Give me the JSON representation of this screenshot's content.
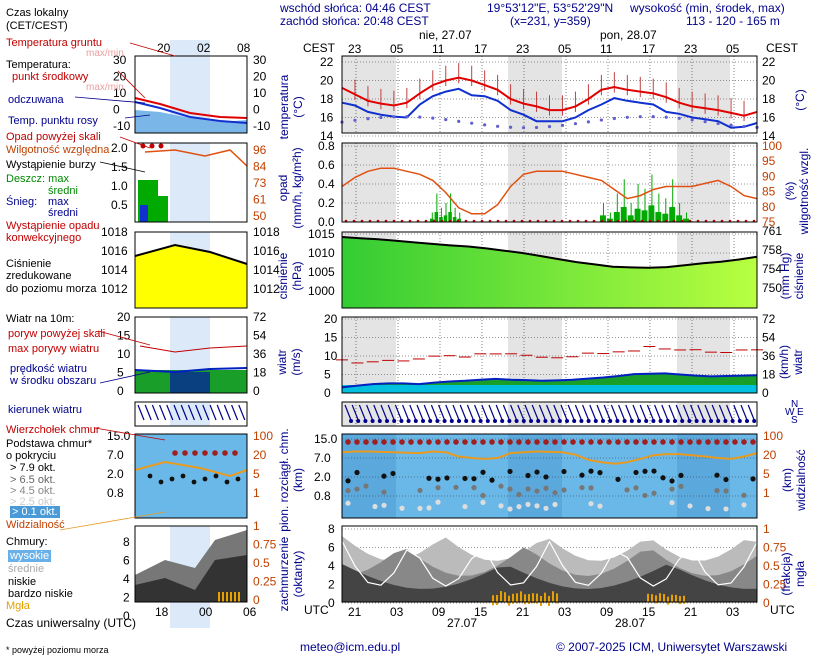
{
  "header": {
    "sunrise": "wschód słońca: 04:46 CEST",
    "sunset": "zachód słońca: 20:48 CEST",
    "coords": "19°53'12\"E, 53°52'29\"N",
    "grid": "(x=231,  y=359)",
    "elev_title": "wysokość (min, środek, max)",
    "elev_values": "113 - 120 - 165 m"
  },
  "legend": {
    "time_local": "Czas lokalny",
    "time_local2": "(CET/CEST)",
    "soil_temp": "Temperatura gruntu",
    "max_min": "max/min",
    "temperature": "Temperatura:",
    "mid_point": "punkt środkowy",
    "max_min2": "max/min",
    "felt": "odczuwana",
    "dew": "Temp. punktu rosy",
    "precip_above": "Opad powyżej skali",
    "humidity": "Wilgotność względna",
    "storm": "Wystąpienie burzy",
    "rain": "Deszcz: max",
    "rain_mean": "średni",
    "snow": "Śnieg:",
    "snow_max": "max",
    "snow_mean": "średni",
    "convective": "Wystąpienie opadu",
    "convective2": "konwekcyjnego",
    "pressure1": "Ciśnienie",
    "pressure2": "zredukowane",
    "pressure3": "do poziomu morza",
    "wind10": "Wiatr na 10m:",
    "gust_above": "poryw powyżej skali",
    "gust_max": "max porywy wiatru",
    "wind_speed": "prędkość wiatru",
    "wind_mean": "w środku obszaru",
    "wind_dir": "kierunek wiatru",
    "cloud_top": "Wierzchołek chmur",
    "cloud_base": "Podstawa chmur*",
    "cloud_base2": "o pokryciu",
    "okt79": "> 7.9 okt.",
    "okt65": "> 6.5 okt.",
    "okt45": "> 4.5 okt.",
    "okt25": "> 2.5 okt.",
    "okt01": "> 0.1 okt.",
    "visibility": "Widzialność",
    "clouds": "Chmury:",
    "high": "wysokie",
    "mid": "średnie",
    "low": "niskie",
    "vlow": "bardzo niskie",
    "fog": "Mgła",
    "utc": "Czas uniwersalny (UTC)",
    "footnote": "* powyżej poziomu morza"
  },
  "legend_axes": {
    "local_ticks": [
      "20",
      "02",
      "08"
    ],
    "utc_ticks": [
      "18",
      "00",
      "06"
    ],
    "temp_left": [
      "30",
      "20",
      "10",
      "0",
      "-10"
    ],
    "temp_right": [
      "30",
      "20",
      "10",
      "0",
      "-10"
    ],
    "precip_left": [
      "2.0",
      "1.5",
      "1.0",
      "0.5"
    ],
    "precip_right": [
      "96",
      "84",
      "73",
      "61",
      "50"
    ],
    "pres_left": [
      "1018",
      "1016",
      "1014",
      "1012"
    ],
    "pres_right": [
      "1018",
      "1016",
      "1014",
      "1012"
    ],
    "wind_left": [
      "20",
      "15",
      "10",
      "5",
      "0"
    ],
    "wind_right": [
      "72",
      "54",
      "36",
      "18",
      "0"
    ],
    "cloudb_left": [
      "15.0",
      "7.0",
      "2.0",
      "0.8"
    ],
    "cloudb_right": [
      "100",
      "20",
      "5",
      "1"
    ],
    "cloud_left": [
      "8",
      "6",
      "4",
      "2",
      "0"
    ],
    "cloud_right": [
      "1",
      "0.75",
      "0.5",
      "0.25",
      "0"
    ]
  },
  "main": {
    "cest": "CEST",
    "utc": "UTC",
    "day1": "nie, 27.07",
    "day2": "pon, 28.07",
    "day1_utc": "27.07",
    "day2_utc": "28.07",
    "top_hours": [
      "23",
      "05",
      "11",
      "17",
      "23",
      "05",
      "11",
      "17",
      "23",
      "05"
    ],
    "bottom_hours": [
      "21",
      "03",
      "09",
      "15",
      "21",
      "03",
      "09",
      "15",
      "21",
      "03"
    ],
    "temp_label": "temperatura",
    "temp_unit": "(°C)",
    "temp_unit_r": "(°C)",
    "temp_ticks": [
      "22",
      "20",
      "18",
      "16",
      "14"
    ],
    "precip_label": "opad",
    "precip_unit": "(mm/h, kg/m²h)",
    "hum_label": "wilgotność wzgl.",
    "hum_unit": "(%)",
    "precip_ticks": [
      "0.8",
      "0.6",
      "0.4",
      "0.2",
      "0.0"
    ],
    "hum_ticks": [
      "100",
      "95",
      "90",
      "85",
      "80",
      "75"
    ],
    "pres_label": "ciśnienie",
    "pres_unit": "(hPa)",
    "pres_label_r": "ciśnienie",
    "pres_unit_r": "(mm Hg)",
    "pres_ticks": [
      "1015",
      "1010",
      "1005",
      "1000"
    ],
    "pres_ticks_r": [
      "761",
      "758",
      "754",
      "750"
    ],
    "wind_label": "wiatr",
    "wind_unit": "(m/s)",
    "wind_label_r": "wiatr",
    "wind_unit_r": "(km/h)",
    "wind_ticks": [
      "20",
      "15",
      "10",
      "5",
      "0"
    ],
    "wind_ticks_r": [
      "72",
      "54",
      "36",
      "18",
      "0"
    ],
    "cloudb_label": "pion. rozciągł. chm.",
    "cloudb_unit": "(km)",
    "vis_label": "widzialność",
    "vis_unit": "(km)",
    "cloudb_ticks": [
      "15.0",
      "7.0",
      "2.0",
      "0.8"
    ],
    "vis_ticks": [
      "100",
      "20",
      "5",
      "1"
    ],
    "cloud_label": "zachmurzenie",
    "cloud_unit": "(oktanty)",
    "fog_label": "mgła",
    "fog_unit": "(frakcja)",
    "cloud_ticks": [
      "8",
      "6",
      "4",
      "2",
      "0"
    ],
    "fog_ticks": [
      "1",
      "0.75",
      "0.5",
      "0.25",
      "0"
    ],
    "compass": [
      "N",
      "W",
      "E",
      "S"
    ]
  },
  "footer": {
    "email": "meteo@icm.edu.pl",
    "copyright": "© 2007-2025 ICM, Uniwersytet Warszawski"
  },
  "colors": {
    "temp_line": "#e00000",
    "felt_line": "#1030d0",
    "dew_dots": "#6060d0",
    "humidity": "#e05010",
    "rain_bar": "#00aa00",
    "pressure_fill_start": "#33cc33",
    "pressure_fill_end": "#b8ff40",
    "pressure_legend_fill": "#ffff00",
    "sky": "#6ab8e8",
    "night_band": "#e4e4e4",
    "label_blue": "#00008b"
  }
}
